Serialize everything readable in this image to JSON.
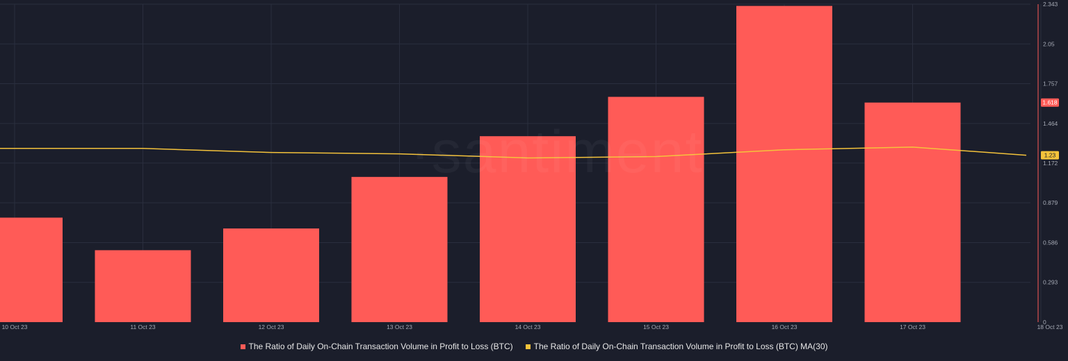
{
  "watermark": "·santiment",
  "colors": {
    "background": "#1b1e2b",
    "bar": "#ff5b57",
    "line": "#f5c33b",
    "axis": "#ff5b57",
    "grid": "#2a2e3e",
    "tick_text": "#a6aab5"
  },
  "chart_data": {
    "type": "bar",
    "title": "",
    "xlabel": "",
    "ylabel": "",
    "ylim": [
      0,
      2.343
    ],
    "x": [
      "10 Oct 23",
      "11 Oct 23",
      "12 Oct 23",
      "13 Oct 23",
      "14 Oct 23",
      "15 Oct 23",
      "16 Oct 23",
      "17 Oct 23",
      "18 Oct 23"
    ],
    "y_ticks": [
      "0",
      "0.293",
      "0.586",
      "0.879",
      "1.172",
      "1.464",
      "1.757",
      "2.05",
      "2.343"
    ],
    "grid": true,
    "legend_position": "bottom",
    "series": [
      {
        "name": "The Ratio of Daily On-Chain Transaction Volume in Profit to Loss (BTC)",
        "type": "bar",
        "color": "#ff5b57",
        "values": [
          0.77,
          0.53,
          0.69,
          1.07,
          1.37,
          1.66,
          2.33,
          1.618,
          null
        ],
        "last_value_label": "1.618"
      },
      {
        "name": "The Ratio of Daily On-Chain Transaction Volume in Profit to Loss (BTC) MA(30)",
        "type": "line",
        "color": "#f5c33b",
        "values": [
          1.28,
          1.28,
          1.25,
          1.24,
          1.21,
          1.22,
          1.27,
          1.29,
          1.23
        ],
        "last_value_label": "1.23"
      }
    ]
  }
}
